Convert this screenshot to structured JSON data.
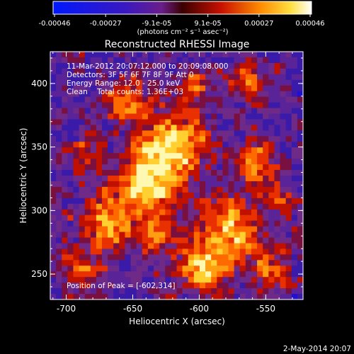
{
  "colorbar": {
    "ticks": [
      "-0.00046",
      "-0.00027",
      "-9.1e-05",
      "9.1e-05",
      "0.00027",
      "0.00046"
    ],
    "units": "(photons cm⁻² s⁻¹ asec⁻²)"
  },
  "image": {
    "title": "Reconstructed RHESSI Image",
    "xlabel": "Heliocentric X (arcsec)",
    "ylabel": "Heliocentric Y (arcsec)",
    "xticks": [
      "-700",
      "-650",
      "-600",
      "-550"
    ],
    "yticks": [
      "400",
      "350",
      "300",
      "250"
    ],
    "xrange": [
      -712,
      -522
    ],
    "yrange": [
      230,
      425
    ]
  },
  "annotations": {
    "time_range": "11-Mar-2012 20:07:12.000 to 20:09:08.000",
    "detectors": "Detectors: 3F 5F 6F 7F 8F 9F Att 0",
    "energy": "Energy Range: 12.0 - 25.0 keV",
    "clean": "Clean    Total counts: 1.36E+03",
    "peak": "Position of Peak = [-602,314]"
  },
  "footer": {
    "timestamp": "2-May-2014 20:07"
  }
}
